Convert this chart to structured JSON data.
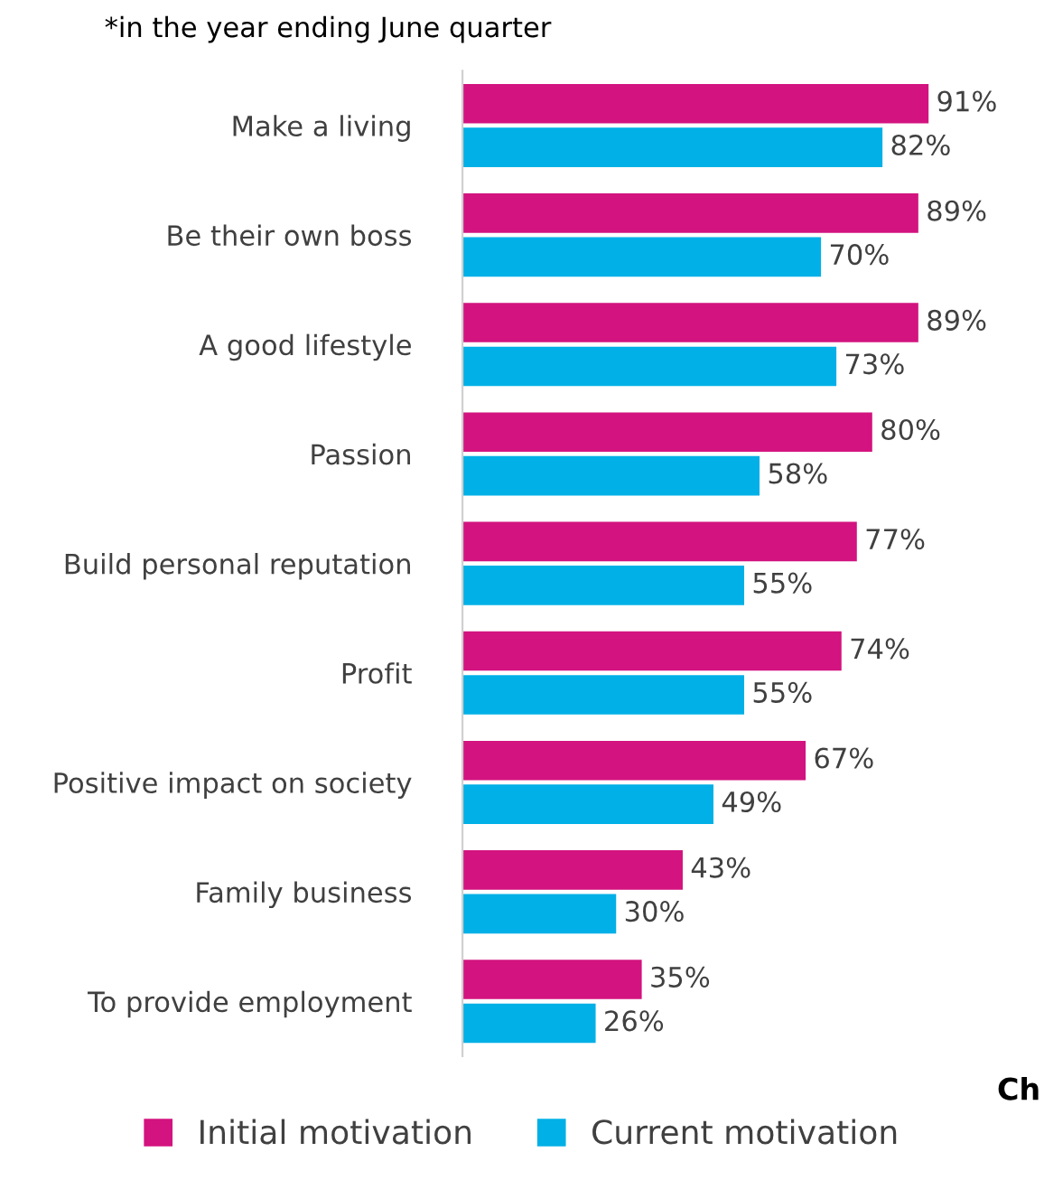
{
  "chart_data": {
    "type": "bar",
    "orientation": "horizontal",
    "categories": [
      "Make a living",
      "Be their own boss",
      "A good lifestyle",
      "Passion",
      "Build personal reputation",
      "Profit",
      "Positive impact on society",
      "Family business",
      "To provide employment"
    ],
    "series": [
      {
        "name": "Initial motivation",
        "color": "#d3137f",
        "values": [
          91,
          89,
          89,
          80,
          77,
          74,
          67,
          43,
          35
        ],
        "value_labels": [
          "91%",
          "89%",
          "89%",
          "80%",
          "77%",
          "74%",
          "67%",
          "43%",
          "35%"
        ]
      },
      {
        "name": "Current motivation",
        "color": "#00b0e6",
        "values": [
          82,
          70,
          73,
          58,
          55,
          55,
          49,
          30,
          26
        ],
        "value_labels": [
          "82%",
          "70%",
          "73%",
          "58%",
          "55%",
          "55%",
          "49%",
          "30%",
          "26%"
        ]
      }
    ],
    "legend": "bottom",
    "grid": false,
    "annotations": [
      "*in the year ending June quarter",
      "Ch"
    ]
  }
}
